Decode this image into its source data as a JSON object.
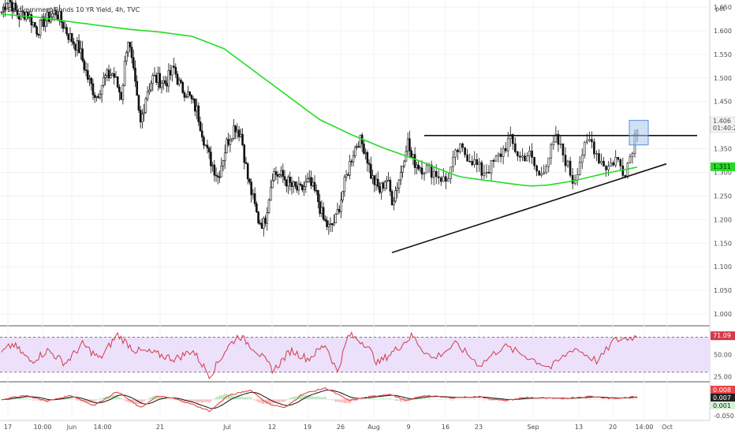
{
  "header": {
    "title": "US Government Bonds 10 YR Yield, 4h, TVC",
    "unit_label": "pct"
  },
  "chart_data": [
    {
      "type": "candlestick",
      "name": "price",
      "y_ticks": [
        1.0,
        1.05,
        1.1,
        1.15,
        1.2,
        1.25,
        1.3,
        1.35,
        1.45,
        1.5,
        1.55,
        1.6,
        1.65
      ],
      "ylim": [
        0.975,
        1.665
      ],
      "x_ticks": [
        "17",
        "10:00",
        "Jun",
        "14:00",
        "21",
        "Jul",
        "12",
        "19",
        "26",
        "Aug",
        "9",
        "16",
        "23",
        "Sep",
        "13",
        "20",
        "14:00",
        "Oct"
      ],
      "last_price": "1.406",
      "countdown": "01:40:21",
      "ma_label": "1.311",
      "ma_color": "#22dd22",
      "candle_color": "#111111",
      "ma_anchors": [
        [
          0,
          1.635
        ],
        [
          0.06,
          1.628
        ],
        [
          0.12,
          1.617
        ],
        [
          0.2,
          1.603
        ],
        [
          0.25,
          1.597
        ],
        [
          0.3,
          1.588
        ],
        [
          0.35,
          1.562
        ],
        [
          0.4,
          1.512
        ],
        [
          0.45,
          1.462
        ],
        [
          0.5,
          1.412
        ],
        [
          0.55,
          1.38
        ],
        [
          0.6,
          1.352
        ],
        [
          0.65,
          1.328
        ],
        [
          0.7,
          1.301
        ],
        [
          0.72,
          1.291
        ],
        [
          0.75,
          1.285
        ],
        [
          0.8,
          1.276
        ],
        [
          0.83,
          1.271
        ],
        [
          0.86,
          1.273
        ],
        [
          0.9,
          1.282
        ],
        [
          0.95,
          1.298
        ],
        [
          1,
          1.311
        ]
      ],
      "price_anchors": [
        [
          0,
          1.64
        ],
        [
          0.015,
          1.67
        ],
        [
          0.04,
          1.63
        ],
        [
          0.06,
          1.64
        ],
        [
          0.085,
          1.6
        ],
        [
          0.1,
          1.62
        ],
        [
          0.13,
          1.64
        ],
        [
          0.16,
          1.59
        ],
        [
          0.185,
          1.56
        ],
        [
          0.205,
          1.5
        ],
        [
          0.225,
          1.46
        ],
        [
          0.245,
          1.5
        ],
        [
          0.265,
          1.51
        ],
        [
          0.285,
          1.46
        ],
        [
          0.3,
          1.59
        ],
        [
          0.315,
          1.5
        ],
        [
          0.33,
          1.4
        ],
        [
          0.345,
          1.47
        ],
        [
          0.36,
          1.5
        ],
        [
          0.39,
          1.49
        ],
        [
          0.41,
          1.52
        ],
        [
          0.425,
          1.48
        ],
        [
          0.44,
          1.47
        ],
        [
          0.465,
          1.43
        ],
        [
          0.49,
          1.34
        ],
        [
          0.515,
          1.29
        ],
        [
          0.535,
          1.36
        ],
        [
          0.555,
          1.4
        ],
        [
          0.57,
          1.38
        ],
        [
          0.585,
          1.29
        ],
        [
          0.61,
          1.2
        ],
        [
          0.625,
          1.19
        ],
        [
          0.645,
          1.3
        ],
        [
          0.67,
          1.29
        ],
        [
          0.69,
          1.27
        ],
        [
          0.71,
          1.26
        ],
        [
          0.73,
          1.28
        ],
        [
          0.75,
          1.25
        ],
        [
          0.765,
          1.2
        ],
        [
          0.78,
          1.18
        ],
        [
          0.795,
          1.2
        ],
        [
          0.82,
          1.29
        ],
        [
          0.835,
          1.34
        ],
        [
          0.85,
          1.37
        ],
        [
          0.865,
          1.35
        ],
        [
          0.88,
          1.29
        ],
        [
          0.9,
          1.26
        ],
        [
          0.915,
          1.29
        ],
        [
          0.93,
          1.24
        ],
        [
          0.95,
          1.3
        ],
        [
          0.965,
          1.37
        ],
        [
          0.975,
          1.33
        ],
        [
          0.985,
          1.32
        ],
        [
          1,
          1.31
        ]
      ],
      "price_anchors_2": [
        [
          0,
          1.31
        ],
        [
          0.05,
          1.3
        ],
        [
          0.1,
          1.28
        ],
        [
          0.16,
          1.35
        ],
        [
          0.22,
          1.33
        ],
        [
          0.27,
          1.3
        ],
        [
          0.31,
          1.31
        ],
        [
          0.36,
          1.34
        ],
        [
          0.4,
          1.37
        ],
        [
          0.45,
          1.33
        ],
        [
          0.49,
          1.34
        ],
        [
          0.54,
          1.29
        ],
        [
          0.58,
          1.33
        ],
        [
          0.62,
          1.37
        ],
        [
          0.66,
          1.33
        ],
        [
          0.7,
          1.28
        ],
        [
          0.74,
          1.34
        ],
        [
          0.78,
          1.37
        ],
        [
          0.82,
          1.33
        ],
        [
          0.86,
          1.31
        ],
        [
          0.9,
          1.33
        ],
        [
          0.94,
          1.3
        ],
        [
          0.97,
          1.34
        ],
        [
          1,
          1.4
        ]
      ],
      "trendlines": [
        {
          "name": "resistance",
          "from": [
            "Aug 10",
            1.378
          ],
          "to": [
            "Oct",
            1.378
          ]
        },
        {
          "name": "support",
          "from": [
            "Aug 3",
            1.13
          ],
          "to": [
            "Sep 30",
            1.31
          ]
        }
      ],
      "highlight_box": {
        "from_y": 1.358,
        "to_y": 1.41
      }
    },
    {
      "type": "line",
      "name": "RSI",
      "y_ticks": [
        25.0,
        50.0
      ],
      "upper_band": 70,
      "lower_band": 30,
      "ylim": [
        20,
        82
      ],
      "last_value": "71.09",
      "line_color": "#d23a4a",
      "band_fill": "#ece0fb",
      "anchors": [
        [
          0,
          52
        ],
        [
          0.02,
          62
        ],
        [
          0.05,
          42
        ],
        [
          0.08,
          55
        ],
        [
          0.11,
          40
        ],
        [
          0.14,
          62
        ],
        [
          0.17,
          45
        ],
        [
          0.2,
          73
        ],
        [
          0.23,
          55
        ],
        [
          0.26,
          52
        ],
        [
          0.3,
          45
        ],
        [
          0.33,
          55
        ],
        [
          0.36,
          26
        ],
        [
          0.39,
          58
        ],
        [
          0.41,
          72
        ],
        [
          0.44,
          55
        ],
        [
          0.47,
          32
        ],
        [
          0.5,
          55
        ],
        [
          0.53,
          45
        ],
        [
          0.56,
          62
        ],
        [
          0.58,
          30
        ],
        [
          0.6,
          73
        ],
        [
          0.63,
          62
        ],
        [
          0.65,
          40
        ],
        [
          0.68,
          55
        ],
        [
          0.71,
          72
        ],
        [
          0.74,
          45
        ],
        [
          0.77,
          62
        ],
        [
          0.8,
          38
        ],
        [
          0.83,
          60
        ],
        [
          0.86,
          48
        ],
        [
          0.89,
          35
        ],
        [
          0.92,
          58
        ],
        [
          0.95,
          42
        ],
        [
          0.97,
          66
        ],
        [
          1,
          71
        ]
      ]
    },
    {
      "type": "line",
      "name": "MACD",
      "y_ticks": [
        "-0.050"
      ],
      "macd_label": "0.008",
      "signal_label": "0.007",
      "hist_label": "0.001",
      "macd_color": "#e54444",
      "signal_color": "#111111",
      "anchors": [
        [
          0,
          0.0
        ],
        [
          0.04,
          0.012
        ],
        [
          0.08,
          -0.005
        ],
        [
          0.12,
          0.012
        ],
        [
          0.16,
          -0.018
        ],
        [
          0.2,
          0.024
        ],
        [
          0.24,
          -0.025
        ],
        [
          0.27,
          0.01
        ],
        [
          0.3,
          0.002
        ],
        [
          0.33,
          -0.015
        ],
        [
          0.36,
          -0.035
        ],
        [
          0.39,
          0.01
        ],
        [
          0.43,
          0.028
        ],
        [
          0.46,
          -0.012
        ],
        [
          0.49,
          -0.025
        ],
        [
          0.52,
          0.016
        ],
        [
          0.56,
          0.034
        ],
        [
          0.6,
          -0.003
        ],
        [
          0.63,
          0.006
        ],
        [
          0.67,
          0.016
        ],
        [
          0.7,
          -0.004
        ],
        [
          0.73,
          0.012
        ],
        [
          0.76,
          0.005
        ],
        [
          0.8,
          0.008
        ],
        [
          0.83,
          -0.004
        ],
        [
          0.86,
          0.006
        ],
        [
          0.9,
          0.002
        ],
        [
          0.94,
          0.009
        ],
        [
          0.97,
          0.003
        ],
        [
          1,
          0.008
        ]
      ]
    }
  ]
}
